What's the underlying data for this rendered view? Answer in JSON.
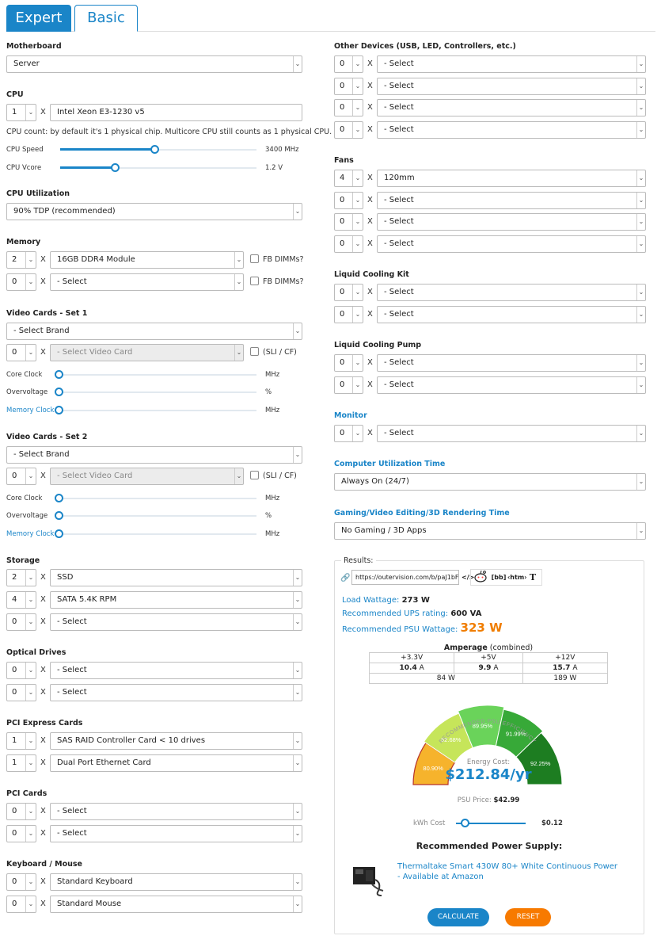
{
  "tabs": {
    "expert": "Expert",
    "basic": "Basic"
  },
  "common": {
    "x": "X",
    "caret": "⌄"
  },
  "motherboard": {
    "label": "Motherboard",
    "value": "Server"
  },
  "cpu": {
    "label": "CPU",
    "qty": "1",
    "value": "Intel Xeon E3-1230 v5",
    "note": "CPU count: by default it's 1 physical chip. Multicore CPU still counts as 1 physical CPU.",
    "speed_label": "CPU Speed",
    "speed_value": "3400 MHz",
    "speed_level": 0.48,
    "vcore_label": "CPU Vcore",
    "vcore_value": "1.2 V",
    "vcore_level": 0.28
  },
  "cpu_util": {
    "label": "CPU Utilization",
    "value": "90% TDP (recommended)"
  },
  "memory": {
    "label": "Memory",
    "fb_label": "FB DIMMs?",
    "rows": [
      {
        "qty": "2",
        "value": "16GB DDR4 Module"
      },
      {
        "qty": "0",
        "value": "- Select"
      }
    ]
  },
  "video1": {
    "label": "Video Cards - Set 1",
    "brand": "- Select Brand",
    "qty": "0",
    "card": "- Select Video Card",
    "sli": "(SLI / CF)",
    "core_label": "Core Clock",
    "core_unit": "MHz",
    "ov_label": "Overvoltage",
    "ov_unit": "%",
    "mem_label": "Memory Clock",
    "mem_unit": "MHz"
  },
  "video2": {
    "label": "Video Cards - Set 2",
    "brand": "- Select Brand",
    "qty": "0",
    "card": "- Select Video Card",
    "sli": "(SLI / CF)",
    "core_label": "Core Clock",
    "core_unit": "MHz",
    "ov_label": "Overvoltage",
    "ov_unit": "%",
    "mem_label": "Memory Clock",
    "mem_unit": "MHz"
  },
  "storage": {
    "label": "Storage",
    "rows": [
      {
        "qty": "2",
        "value": "SSD"
      },
      {
        "qty": "4",
        "value": "SATA 5.4K RPM"
      },
      {
        "qty": "0",
        "value": "- Select"
      }
    ]
  },
  "optical": {
    "label": "Optical Drives",
    "rows": [
      {
        "qty": "0",
        "value": "- Select"
      },
      {
        "qty": "0",
        "value": "- Select"
      }
    ]
  },
  "pcie": {
    "label": "PCI Express Cards",
    "rows": [
      {
        "qty": "1",
        "value": "SAS RAID Controller Card < 10 drives"
      },
      {
        "qty": "1",
        "value": "Dual Port Ethernet Card"
      }
    ]
  },
  "pci": {
    "label": "PCI Cards",
    "rows": [
      {
        "qty": "0",
        "value": "- Select"
      },
      {
        "qty": "0",
        "value": "- Select"
      }
    ]
  },
  "kbm": {
    "label": "Keyboard / Mouse",
    "rows": [
      {
        "qty": "0",
        "value": "Standard Keyboard"
      },
      {
        "qty": "0",
        "value": "Standard Mouse"
      }
    ]
  },
  "other": {
    "label": "Other Devices (USB, LED, Controllers, etc.)",
    "rows": [
      {
        "qty": "0",
        "value": "- Select"
      },
      {
        "qty": "0",
        "value": "- Select"
      },
      {
        "qty": "0",
        "value": "- Select"
      },
      {
        "qty": "0",
        "value": "- Select"
      }
    ]
  },
  "fans": {
    "label": "Fans",
    "rows": [
      {
        "qty": "4",
        "value": "120mm"
      },
      {
        "qty": "0",
        "value": "- Select"
      },
      {
        "qty": "0",
        "value": "- Select"
      },
      {
        "qty": "0",
        "value": "- Select"
      }
    ]
  },
  "liquid_kit": {
    "label": "Liquid Cooling Kit",
    "rows": [
      {
        "qty": "0",
        "value": "- Select"
      },
      {
        "qty": "0",
        "value": "- Select"
      }
    ]
  },
  "liquid_pump": {
    "label": "Liquid Cooling Pump",
    "rows": [
      {
        "qty": "0",
        "value": "- Select"
      },
      {
        "qty": "0",
        "value": "- Select"
      }
    ]
  },
  "monitor": {
    "label": "Monitor",
    "qty": "0",
    "value": "- Select"
  },
  "util_time": {
    "label": "Computer Utilization Time",
    "value": "Always On (24/7)"
  },
  "gaming_time": {
    "label": "Gaming/Video Editing/3D Rendering Time",
    "value": "No Gaming / 3D Apps"
  },
  "results": {
    "title": "Results:",
    "url": "https://outervision.com/b/paJ1bF",
    "share": {
      "code": "</>",
      "bb": "[bb]",
      "html": "‹htm›",
      "t": "T"
    },
    "load_label": "Load Wattage:",
    "load_value": "273 W",
    "ups_label": "Recommended UPS rating:",
    "ups_value": "600 VA",
    "psu_label": "Recommended PSU Wattage:",
    "psu_value": "323 W",
    "amp_title": "Amperage",
    "amp_sub": "(combined)",
    "rails": [
      {
        "rail": "+3.3V",
        "amps": "10.4",
        "unit": "A"
      },
      {
        "rail": "+5V",
        "amps": "9.9",
        "unit": "A"
      },
      {
        "rail": "+12V",
        "amps": "15.7",
        "unit": "A"
      }
    ],
    "watt_left": "84 W",
    "watt_right": "189 W",
    "gauge_title": "RECOMMENDED PSU EFFICIENCY",
    "gauge_segments": [
      {
        "label": "80.90%",
        "color": "#f6b32c"
      },
      {
        "label": "82.68%",
        "color": "#c6e55a"
      },
      {
        "label": "89.95%",
        "color": "#6ad35a"
      },
      {
        "label": "91.99%",
        "color": "#37a938"
      },
      {
        "label": "92.25%",
        "color": "#1d7d21"
      }
    ],
    "energy_label": "Energy Cost:",
    "energy_value": "$212.84/yr",
    "price_label": "PSU Price:",
    "price_value": "$42.99",
    "kwh_label": "kWh Cost",
    "kwh_value": "$0.12",
    "kwh_level": 0.13,
    "rec_title": "Recommended Power Supply:",
    "rec_link": "Thermaltake Smart 430W 80+ White Continuous Power - Available at Amazon",
    "calc": "CALCULATE",
    "reset": "RESET"
  },
  "colors": {
    "accent": "#1a85c8",
    "orange": "#f07d00"
  }
}
